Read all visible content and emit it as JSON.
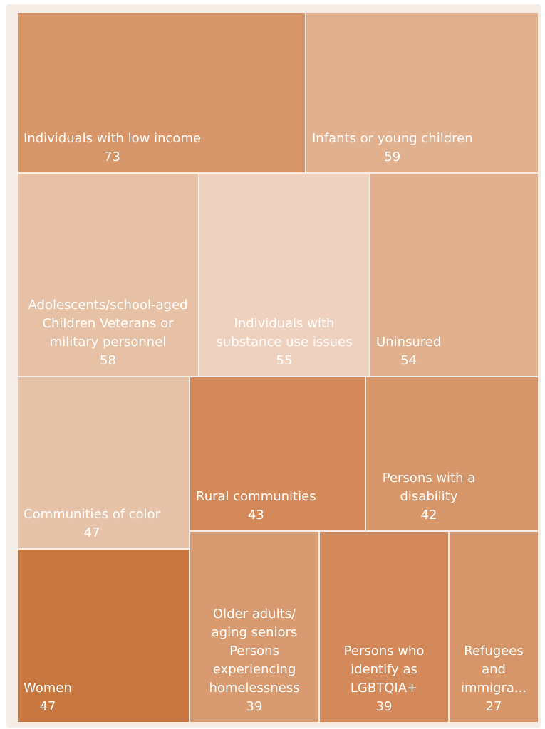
{
  "chart_data": {
    "type": "treemap",
    "categories": [
      "Individuals with low income",
      "Infants or young children",
      "Adolescents/school-aged Children Veterans or military personnel",
      "Individuals with substance use issues",
      "Uninsured",
      "Communities of color",
      "Rural communities",
      "Persons with a disability",
      "Women",
      "Older adults/ aging seniors Persons experiencing homelessness",
      "Persons who identify as LGBTQIA+",
      "Refugees and immigra..."
    ],
    "values": [
      73,
      59,
      58,
      55,
      54,
      47,
      43,
      42,
      47,
      39,
      39,
      27
    ],
    "colors": [
      "#d7956a",
      "#e0b08f",
      "#e6c1a6",
      "#eed1be",
      "#e0b08f",
      "#e6c2a8",
      "#d4895a",
      "#d7956a",
      "#c97740",
      "#d89b71",
      "#d4895a",
      "#d7956a"
    ]
  }
}
